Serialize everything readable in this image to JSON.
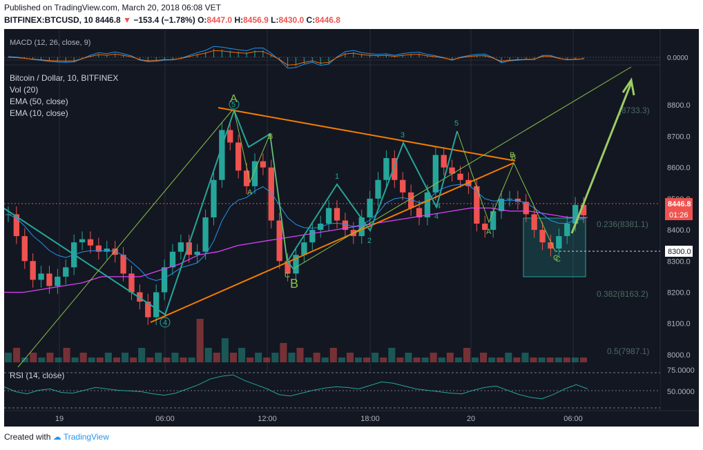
{
  "header": {
    "published": "Published on TradingView.com, March 20, 2018 06:08 VET",
    "symbol": "BITFINEX:BTCUSD, 10",
    "last": "8446.8",
    "arrow": "▼",
    "change": "−153.4 (−1.78%)",
    "o_label": "O:",
    "o": "8447.0",
    "h_label": "H:",
    "h": "8456.9",
    "l_label": "L:",
    "l": "8430.0",
    "c_label": "C:",
    "c": "8446.8",
    "down_color": "#ef5350",
    "text_color": "#131722"
  },
  "macd": {
    "label": "MACD (12, 26, close, 9)",
    "axis_value": "0.0000",
    "macd_color": "#2196f3",
    "signal_color": "#ff6d00",
    "hist_color": "#26a69a"
  },
  "main": {
    "legend": [
      "Bitcoin / Dollar, 10, BITFINEX",
      "Vol (20)",
      "EMA (50, close)",
      "EMA (10, close)"
    ],
    "ema50_color": "#e040fb",
    "ema10_color": "#2196f3",
    "up_color": "#26a69a",
    "down_color": "#ef5350",
    "current_price_label": "8446.8",
    "countdown": "01:26",
    "level_8300_label": "8300.0",
    "fib_labels": [
      "(8733.3)",
      "0.236(8381.1)",
      "0.382(8163.2)",
      "0.5(7987.1)"
    ],
    "annotations": [
      "A",
      "B",
      "C",
      "B",
      "A",
      "B",
      "C",
      "1",
      "2",
      "3",
      "4",
      "5",
      "A",
      "B",
      "C",
      "4",
      "5",
      "4"
    ]
  },
  "rsi": {
    "label": "RSI (14, close)",
    "axis_labels": [
      "75.0000",
      "50.0000"
    ],
    "line_color": "#26a69a"
  },
  "chart_data": {
    "type": "candlestick",
    "title": "Bitcoin / Dollar, 10, BITFINEX",
    "xlabel": "",
    "ylabel": "",
    "x_ticks": [
      "19",
      "06:00",
      "12:00",
      "18:00",
      "20",
      "06:00"
    ],
    "y_ticks": [
      8800,
      8700,
      8600,
      8500,
      8400,
      8300,
      8200,
      8100,
      8000
    ],
    "ylim": [
      7960,
      8900
    ],
    "grid": true,
    "series": [
      {
        "name": "BTCUSD close (approx. path)",
        "values": [
          8450,
          8380,
          8300,
          8240,
          8260,
          8220,
          8250,
          8280,
          8360,
          8370,
          8350,
          8330,
          8340,
          8320,
          8260,
          8200,
          8170,
          8120,
          8200,
          8280,
          8330,
          8360,
          8320,
          8330,
          8440,
          8560,
          8720,
          8680,
          8590,
          8540,
          8620,
          8600,
          8430,
          8300,
          8260,
          8320,
          8360,
          8400,
          8420,
          8470,
          8430,
          8400,
          8380,
          8440,
          8500,
          8560,
          8630,
          8560,
          8520,
          8470,
          8440,
          8520,
          8640,
          8600,
          8580,
          8560,
          8540,
          8420,
          8400,
          8460,
          8500,
          8500,
          8490,
          8450,
          8400,
          8360,
          8340,
          8380,
          8420,
          8480,
          8446.8
        ]
      },
      {
        "name": "EMA (50, close)",
        "values": [
          8200,
          8200,
          8210,
          8220,
          8230,
          8250,
          8250,
          8250,
          8270,
          8290,
          8320,
          8330,
          8350,
          8360,
          8370,
          8380,
          8390,
          8400,
          8410,
          8420,
          8430,
          8440,
          8450,
          8460,
          8470,
          8470,
          8460,
          8460,
          8450,
          8440,
          8440
        ]
      },
      {
        "name": "Volume",
        "values": [
          2,
          3,
          1,
          2,
          1,
          2,
          1,
          3,
          1,
          2,
          1,
          1,
          2,
          1,
          2,
          1,
          3,
          1,
          2,
          1,
          2,
          1,
          1,
          9,
          3,
          2,
          5,
          2,
          3,
          1,
          2,
          1,
          2,
          4,
          2,
          3,
          1,
          2,
          1,
          3,
          1,
          2,
          1,
          1,
          2,
          1,
          3,
          1,
          2,
          1,
          1,
          2,
          1,
          2,
          1,
          3,
          1,
          2,
          1,
          1,
          2,
          1,
          2,
          1,
          1,
          1,
          1,
          1,
          1,
          1
        ]
      },
      {
        "name": "RSI (14, close)",
        "values": [
          55,
          48,
          45,
          50,
          52,
          47,
          46,
          50,
          54,
          52,
          50,
          49,
          48,
          45,
          43,
          46,
          52,
          58,
          66,
          70,
          72,
          64,
          58,
          52,
          44,
          42,
          46,
          50,
          53,
          55,
          54,
          52,
          57,
          62,
          60,
          56,
          52,
          50,
          48,
          46,
          45,
          50,
          54,
          56,
          50,
          44,
          40,
          38,
          44,
          52,
          58,
          52
        ]
      }
    ],
    "levels": [
      {
        "name": "(8733.3)",
        "value": 8733.3
      },
      {
        "name": "0.236(8381.1)",
        "value": 8381.1
      },
      {
        "name": "0.382(8163.2)",
        "value": 8163.2
      },
      {
        "name": "0.5(7987.1)",
        "value": 7987.1
      },
      {
        "name": "8300.0",
        "value": 8300.0
      }
    ]
  }
}
